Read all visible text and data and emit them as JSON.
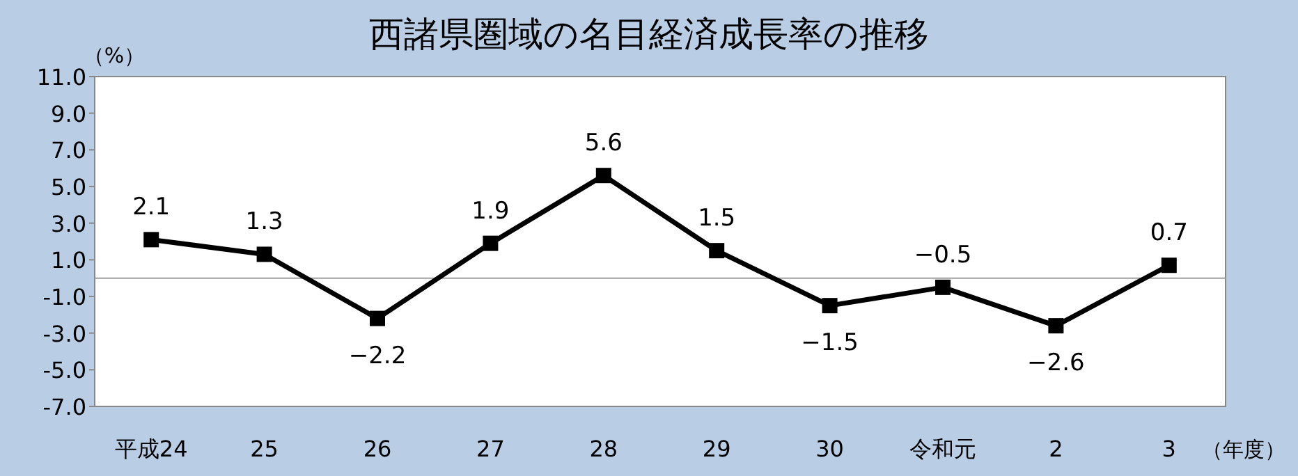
{
  "chart_data": {
    "type": "line",
    "title": "西諸県圏域の名目経済成長率の推移",
    "ylabel": "（%）",
    "xlabel": "（年度）",
    "categories": [
      "平成24",
      "25",
      "26",
      "27",
      "28",
      "29",
      "30",
      "令和元",
      "2",
      "3"
    ],
    "series": [
      {
        "color": "#000000",
        "values": [
          2.1,
          1.3,
          -2.2,
          1.9,
          5.6,
          1.5,
          -1.5,
          -0.5,
          -2.6,
          0.7
        ]
      }
    ],
    "ylim": [
      -7,
      11
    ],
    "yticks": [
      {
        "value": -7,
        "label": "-7.0"
      },
      {
        "value": -5,
        "label": "-5.0"
      },
      {
        "value": -3,
        "label": "-3.0"
      },
      {
        "value": -1,
        "label": "-1.0"
      },
      {
        "value": 1,
        "label": "1.0"
      },
      {
        "value": 3,
        "label": "3.0"
      },
      {
        "value": 5,
        "label": "5.0"
      },
      {
        "value": 7,
        "label": "7.0"
      },
      {
        "value": 9,
        "label": "9.0"
      },
      {
        "value": 11,
        "label": "11.0"
      }
    ],
    "ref_lines": [
      {
        "axis": "y",
        "value": 0,
        "color": "#a0a0a0"
      }
    ],
    "data_labels": true,
    "marker": "square",
    "line_style": "solid",
    "grid": false
  }
}
